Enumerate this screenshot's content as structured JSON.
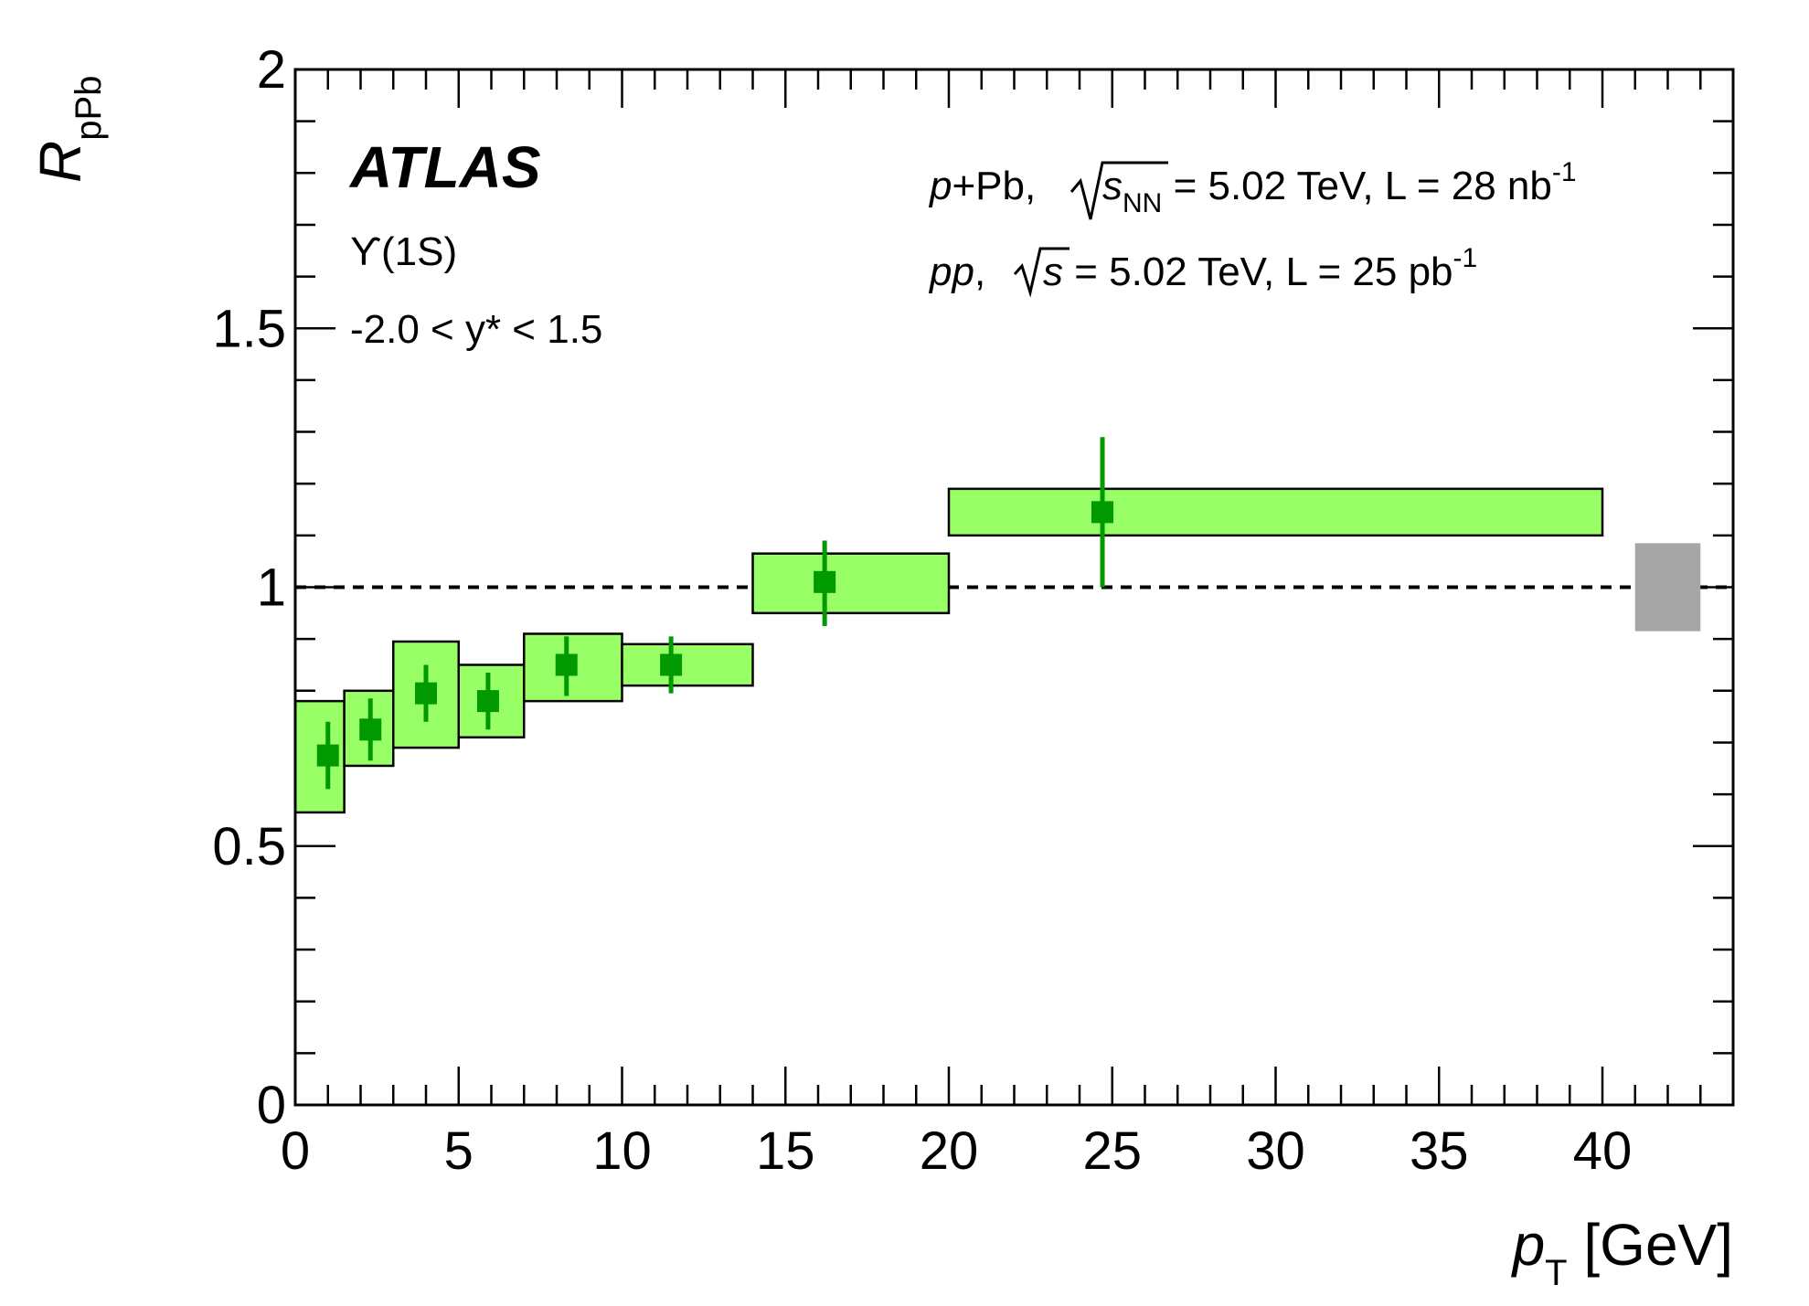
{
  "chart_data": {
    "type": "scatter",
    "x_axis": {
      "label_main": "p",
      "label_sub": "T",
      "label_unit": "[GeV]",
      "range": [
        0,
        44
      ],
      "ticks": [
        0,
        5,
        10,
        15,
        20,
        25,
        30,
        35,
        40
      ],
      "tick_labels": [
        "0",
        "5",
        "10",
        "15",
        "20",
        "25",
        "30",
        "35",
        "40"
      ]
    },
    "y_axis": {
      "label_main": "R",
      "label_sub": "pPb",
      "range": [
        0,
        2
      ],
      "ticks": [
        0,
        0.5,
        1,
        1.5,
        2
      ],
      "tick_labels": [
        "0",
        "0.5",
        "1",
        "1.5",
        "2"
      ]
    },
    "reference_line": 1,
    "points": [
      {
        "x": 1.0,
        "x_low": 0,
        "x_high": 1.5,
        "y": 0.675,
        "stat_low": 0.61,
        "stat_high": 0.74,
        "sys_low": 0.565,
        "sys_high": 0.78
      },
      {
        "x": 2.3,
        "x_low": 1.5,
        "x_high": 3,
        "y": 0.725,
        "stat_low": 0.665,
        "stat_high": 0.785,
        "sys_low": 0.655,
        "sys_high": 0.8
      },
      {
        "x": 4.0,
        "x_low": 3,
        "x_high": 5,
        "y": 0.795,
        "stat_low": 0.74,
        "stat_high": 0.85,
        "sys_low": 0.69,
        "sys_high": 0.895
      },
      {
        "x": 5.9,
        "x_low": 5,
        "x_high": 7,
        "y": 0.78,
        "stat_low": 0.725,
        "stat_high": 0.835,
        "sys_low": 0.71,
        "sys_high": 0.85
      },
      {
        "x": 8.3,
        "x_low": 7,
        "x_high": 10,
        "y": 0.85,
        "stat_low": 0.79,
        "stat_high": 0.905,
        "sys_low": 0.78,
        "sys_high": 0.91
      },
      {
        "x": 11.5,
        "x_low": 10,
        "x_high": 14,
        "y": 0.85,
        "stat_low": 0.795,
        "stat_high": 0.905,
        "sys_low": 0.81,
        "sys_high": 0.89
      },
      {
        "x": 16.2,
        "x_low": 14,
        "x_high": 20,
        "y": 1.01,
        "stat_low": 0.925,
        "stat_high": 1.09,
        "sys_low": 0.95,
        "sys_high": 1.065
      },
      {
        "x": 24.7,
        "x_low": 20,
        "x_high": 40,
        "y": 1.145,
        "stat_low": 1.0,
        "stat_high": 1.29,
        "sys_low": 1.1,
        "sys_high": 1.19
      }
    ],
    "global_uncertainty": {
      "x_low": 41,
      "x_high": 43,
      "y_low": 0.915,
      "y_high": 1.085
    },
    "colors": {
      "marker": "#009900",
      "sys_box_fill": "#99ff66",
      "sys_box_stroke": "#000000",
      "global_box": "#a6a6a6",
      "reference_line": "#000000"
    }
  },
  "annotations": {
    "atlas": "ATLAS",
    "state": "ϒ(1S)",
    "rapidity": "-2.0 < y* < 1.5",
    "ppb_line": {
      "p": "p",
      "plus_pb": "+Pb, ",
      "s": "s",
      "nn": "NN",
      "energy_lumi": " = 5.02 TeV, L = 28 nb",
      "exp": "-1"
    },
    "pp_line": {
      "pp": "pp",
      "comma": ", ",
      "s": "s",
      "energy_lumi": " = 5.02 TeV, L = 25 pb",
      "exp": "-1"
    }
  }
}
